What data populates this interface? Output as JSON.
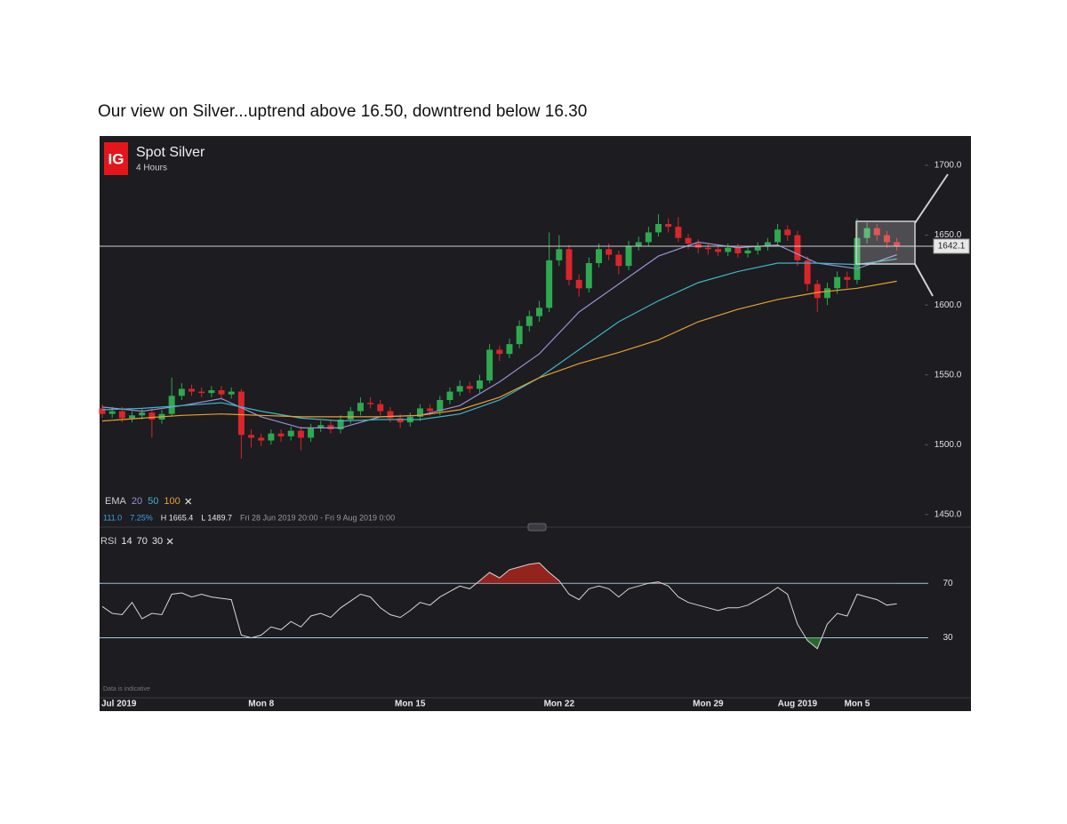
{
  "heading": "Our view on Silver...uptrend above 16.50, downtrend below 16.30",
  "chart_data": [
    {
      "type": "candlestick",
      "title": "Spot Silver",
      "subtitle": "4 Hours",
      "logo": "IG",
      "up_color": "#2fa84f",
      "down_color": "#d9262a",
      "categories": [
        null,
        "Jul 2019",
        null,
        null,
        null,
        null,
        null,
        null,
        null,
        null,
        null,
        null,
        null,
        null,
        null,
        null,
        "Mon 8",
        null,
        null,
        null,
        null,
        null,
        null,
        null,
        null,
        null,
        null,
        null,
        null,
        null,
        null,
        "Mon 15",
        null,
        null,
        null,
        null,
        null,
        null,
        null,
        null,
        null,
        null,
        null,
        null,
        null,
        null,
        "Mon 22",
        null,
        null,
        null,
        null,
        null,
        null,
        null,
        null,
        null,
        null,
        null,
        null,
        null,
        null,
        "Mon 29",
        null,
        null,
        null,
        null,
        null,
        null,
        null,
        null,
        "Aug 2019",
        null,
        null,
        null,
        null,
        null,
        "Mon 5",
        null,
        null,
        null,
        null
      ],
      "open": [
        1526,
        1522,
        1524,
        1519,
        1521,
        1523,
        1518,
        1522,
        1535,
        1540,
        1538,
        1537,
        1539,
        1536,
        1538,
        1507,
        1505,
        1503,
        1508,
        1506,
        1510,
        1505,
        1512,
        1514,
        1511,
        1518,
        1524,
        1530,
        1529,
        1524,
        1519,
        1516,
        1520,
        1526,
        1524,
        1532,
        1538,
        1542,
        1540,
        1546,
        1568,
        1565,
        1572,
        1585,
        1592,
        1598,
        1632,
        1640,
        1618,
        1612,
        1630,
        1640,
        1636,
        1628,
        1642,
        1645,
        1652,
        1658,
        1656,
        1648,
        1644,
        1641,
        1640,
        1638,
        1641,
        1637,
        1639,
        1642,
        1645,
        1654,
        1650,
        1632,
        1615,
        1605,
        1612,
        1620,
        1618,
        1648,
        1655,
        1650,
        1645
      ],
      "high": [
        1529,
        1527,
        1527,
        1524,
        1526,
        1526,
        1525,
        1548,
        1544,
        1543,
        1541,
        1542,
        1542,
        1541,
        1540,
        1511,
        1508,
        1511,
        1511,
        1513,
        1513,
        1515,
        1517,
        1517,
        1521,
        1527,
        1534,
        1534,
        1532,
        1527,
        1522,
        1523,
        1529,
        1529,
        1535,
        1541,
        1546,
        1545,
        1550,
        1572,
        1571,
        1576,
        1589,
        1596,
        1603,
        1652,
        1650,
        1643,
        1622,
        1634,
        1644,
        1644,
        1639,
        1646,
        1649,
        1656,
        1665,
        1662,
        1663,
        1651,
        1647,
        1644,
        1643,
        1644,
        1644,
        1642,
        1645,
        1648,
        1658,
        1657,
        1653,
        1635,
        1618,
        1616,
        1624,
        1624,
        1662,
        1659,
        1658,
        1653,
        1648
      ],
      "low": [
        1519,
        1519,
        1516,
        1516,
        1518,
        1505,
        1515,
        1520,
        1532,
        1535,
        1534,
        1534,
        1533,
        1533,
        1490,
        1498,
        1499,
        1500,
        1502,
        1503,
        1496,
        1502,
        1509,
        1508,
        1508,
        1515,
        1521,
        1526,
        1521,
        1516,
        1512,
        1513,
        1517,
        1521,
        1521,
        1529,
        1535,
        1537,
        1537,
        1544,
        1560,
        1562,
        1569,
        1581,
        1588,
        1595,
        1628,
        1614,
        1606,
        1609,
        1627,
        1632,
        1622,
        1625,
        1639,
        1642,
        1649,
        1652,
        1645,
        1640,
        1637,
        1636,
        1635,
        1635,
        1634,
        1634,
        1636,
        1639,
        1642,
        1646,
        1628,
        1610,
        1595,
        1600,
        1608,
        1612,
        1615,
        1644,
        1646,
        1641,
        1639
      ],
      "close": [
        1522,
        1524,
        1519,
        1521,
        1523,
        1518,
        1522,
        1535,
        1540,
        1538,
        1537,
        1539,
        1536,
        1538,
        1507,
        1505,
        1503,
        1508,
        1506,
        1510,
        1505,
        1512,
        1514,
        1511,
        1518,
        1524,
        1530,
        1529,
        1524,
        1519,
        1516,
        1520,
        1526,
        1524,
        1532,
        1538,
        1542,
        1540,
        1546,
        1568,
        1565,
        1572,
        1585,
        1592,
        1598,
        1632,
        1640,
        1618,
        1612,
        1630,
        1640,
        1636,
        1628,
        1642,
        1645,
        1652,
        1658,
        1656,
        1648,
        1644,
        1641,
        1640,
        1638,
        1641,
        1637,
        1639,
        1642,
        1645,
        1654,
        1650,
        1632,
        1615,
        1605,
        1612,
        1620,
        1618,
        1648,
        1655,
        1650,
        1645,
        1642.1
      ],
      "legend_label": "EMA",
      "series": [
        {
          "name": "20",
          "color": "#9b8fd0",
          "x": [
            0,
            4,
            8,
            12,
            16,
            20,
            24,
            28,
            32,
            36,
            40,
            44,
            48,
            52,
            56,
            60,
            64,
            68,
            72,
            76,
            80
          ],
          "values": [
            1527,
            1524,
            1528,
            1533,
            1520,
            1512,
            1512,
            1520,
            1521,
            1528,
            1545,
            1565,
            1595,
            1615,
            1635,
            1645,
            1641,
            1643,
            1630,
            1626,
            1636
          ]
        },
        {
          "name": "50",
          "color": "#3fb5c8",
          "x": [
            0,
            4,
            8,
            12,
            16,
            20,
            24,
            28,
            32,
            36,
            40,
            44,
            48,
            52,
            56,
            60,
            64,
            68,
            72,
            76,
            80
          ],
          "values": [
            1525,
            1526,
            1528,
            1530,
            1524,
            1519,
            1517,
            1518,
            1518,
            1522,
            1532,
            1548,
            1568,
            1588,
            1603,
            1616,
            1624,
            1630,
            1630,
            1629,
            1633
          ]
        },
        {
          "name": "100",
          "color": "#e8a030",
          "x": [
            0,
            4,
            8,
            12,
            16,
            20,
            24,
            28,
            32,
            36,
            40,
            44,
            48,
            52,
            56,
            60,
            64,
            68,
            72,
            76,
            80
          ],
          "values": [
            1517,
            1519,
            1521,
            1522,
            1521,
            1520,
            1520,
            1520,
            1521,
            1525,
            1534,
            1548,
            1558,
            1566,
            1575,
            1588,
            1597,
            1604,
            1609,
            1612,
            1617
          ]
        }
      ],
      "info": [
        "111.0",
        "7.25%",
        "H 1665.4",
        "L 1489.7",
        "Fri 28 Jun 2019 20:00 - Fri 9 Aug 2019 0:00"
      ],
      "last_price": {
        "value": 1642.1,
        "label": "1642.1"
      },
      "ylim": [
        1441,
        1721
      ],
      "yticks": [
        {
          "value": 1450,
          "label": "1450.0"
        },
        {
          "value": 1500,
          "label": "1500.0"
        },
        {
          "value": 1550,
          "label": "1550.0"
        },
        {
          "value": 1600,
          "label": "1600.0"
        },
        {
          "value": 1650,
          "label": "1650.0"
        },
        {
          "value": 1700,
          "label": "1700.0"
        }
      ],
      "grid": false
    },
    {
      "type": "line",
      "legend_label": "RSI",
      "params": [
        14,
        70,
        30
      ],
      "color": "#d8d8d8",
      "overbought_color": "#b3261e",
      "oversold_color": "#2e7d32",
      "level_color": "#9cc9e0",
      "values": [
        53,
        48,
        47,
        56,
        44,
        48,
        47,
        62,
        63,
        60,
        62,
        60,
        59,
        58,
        32,
        30,
        32,
        38,
        36,
        42,
        38,
        46,
        48,
        45,
        52,
        57,
        62,
        60,
        52,
        47,
        45,
        50,
        56,
        54,
        60,
        64,
        68,
        66,
        72,
        78,
        74,
        80,
        82,
        84,
        85,
        78,
        72,
        62,
        58,
        66,
        68,
        66,
        60,
        66,
        68,
        70,
        71,
        68,
        60,
        56,
        54,
        52,
        50,
        52,
        52,
        54,
        58,
        62,
        67,
        62,
        40,
        28,
        22,
        40,
        48,
        46,
        62,
        60,
        58,
        54,
        55
      ],
      "ylim": [
        -14,
        108
      ],
      "yticks": [
        30,
        70
      ],
      "note": "Data is indicative",
      "grid": false
    }
  ]
}
